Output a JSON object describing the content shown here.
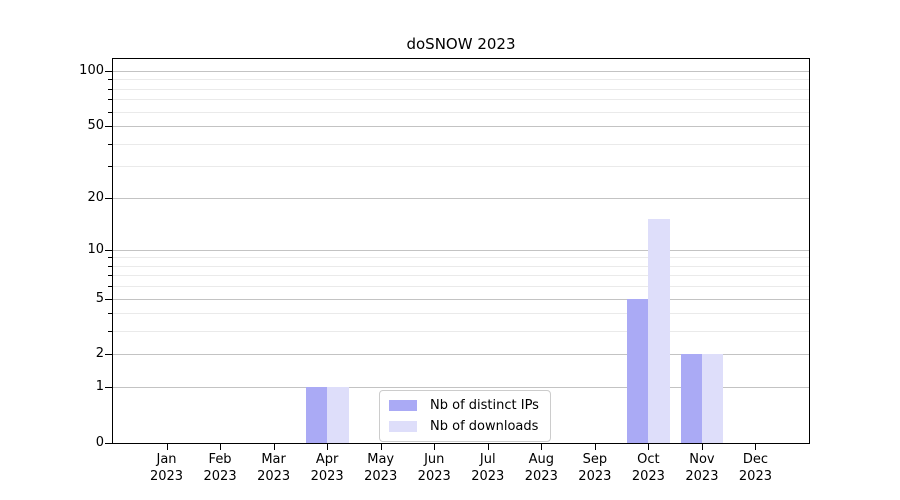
{
  "chart_data": {
    "type": "bar",
    "title": "doSNOW 2023",
    "x_year": "2023",
    "categories": [
      "Jan",
      "Feb",
      "Mar",
      "Apr",
      "May",
      "Jun",
      "Jul",
      "Aug",
      "Sep",
      "Oct",
      "Nov",
      "Dec"
    ],
    "series": [
      {
        "name": "Nb of distinct IPs",
        "color": "#aaaaf5",
        "values": [
          0,
          0,
          0,
          1,
          0,
          0,
          0,
          0,
          0,
          5,
          2,
          0
        ]
      },
      {
        "name": "Nb of downloads",
        "color": "#dedefa",
        "values": [
          0,
          0,
          0,
          1,
          0,
          0,
          0,
          0,
          0,
          15,
          2,
          0
        ]
      }
    ],
    "xlabel": "",
    "ylabel": "",
    "scale": "log1p",
    "ylim": [
      0,
      116
    ],
    "yticks": [
      0,
      1,
      2,
      5,
      10,
      20,
      50,
      100
    ],
    "yticks_minor": [
      3,
      4,
      6,
      7,
      8,
      9,
      30,
      40,
      60,
      70,
      80,
      90
    ],
    "grid": {
      "horizontal_only": true,
      "major_color": "#c3c3c3",
      "minor_color": "#eaeaea"
    },
    "axis_color": "#000000",
    "legend": {
      "position": "inside-bottom-center"
    }
  }
}
